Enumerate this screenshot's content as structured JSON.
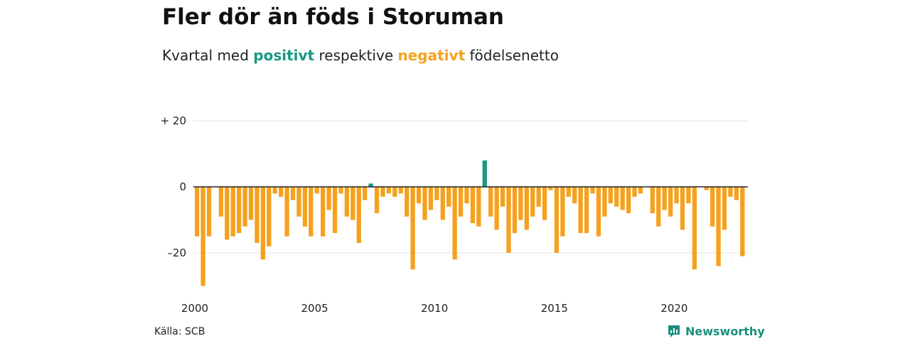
{
  "title": "Fler dör än föds i Storuman",
  "subtitle": {
    "part1": "Kvartal med",
    "positive": "positivt",
    "part2": "respektive",
    "negative": "negativt",
    "part3": "födelsenetto"
  },
  "source": "Källa: SCB",
  "brand": "Newsworthy",
  "brand_icon": "newsworthy-logo-icon",
  "colors": {
    "positive": "#1a9882",
    "negative": "#f5a11f",
    "axis": "#222222",
    "grid": "#e3e3e3"
  },
  "chart_data": {
    "type": "bar",
    "title": "Fler dör än föds i Storuman",
    "xlabel": "",
    "ylabel": "",
    "ylim": [
      -30,
      20
    ],
    "y_ticks": [
      {
        "value": 20,
        "label": "+ 20"
      },
      {
        "value": 0,
        "label": "0"
      },
      {
        "value": -20,
        "label": "–20"
      }
    ],
    "x_ticks": [
      "2000",
      "2005",
      "2010",
      "2015",
      "2020"
    ],
    "x_tick_years": [
      2000,
      2005,
      2010,
      2015,
      2020
    ],
    "start_year": 2000,
    "grid": true,
    "values": [
      -15,
      -30,
      -15,
      0,
      -9,
      -16,
      -15,
      -14,
      -12,
      -10,
      -17,
      -22,
      -18,
      -2,
      -3,
      -15,
      -4,
      -9,
      -12,
      -15,
      -2,
      -15,
      -7,
      -14,
      -2,
      -9,
      -10,
      -17,
      -4,
      1,
      -8,
      -3,
      -2,
      -3,
      -2,
      -9,
      -25,
      -5,
      -10,
      -7,
      -4,
      -10,
      -6,
      -22,
      -9,
      -5,
      -11,
      -12,
      8,
      -9,
      -13,
      -6,
      -20,
      -14,
      -10,
      -13,
      -9,
      -6,
      -10,
      -1,
      -20,
      -15,
      -3,
      -5,
      -14,
      -14,
      -2,
      -15,
      -9,
      -5,
      -6,
      -7,
      -8,
      -3,
      -2,
      0,
      -8,
      -12,
      -7,
      -9,
      -5,
      -13,
      -5,
      -25,
      0,
      -1,
      -12,
      -24,
      -13,
      -3,
      -4,
      -21
    ]
  }
}
